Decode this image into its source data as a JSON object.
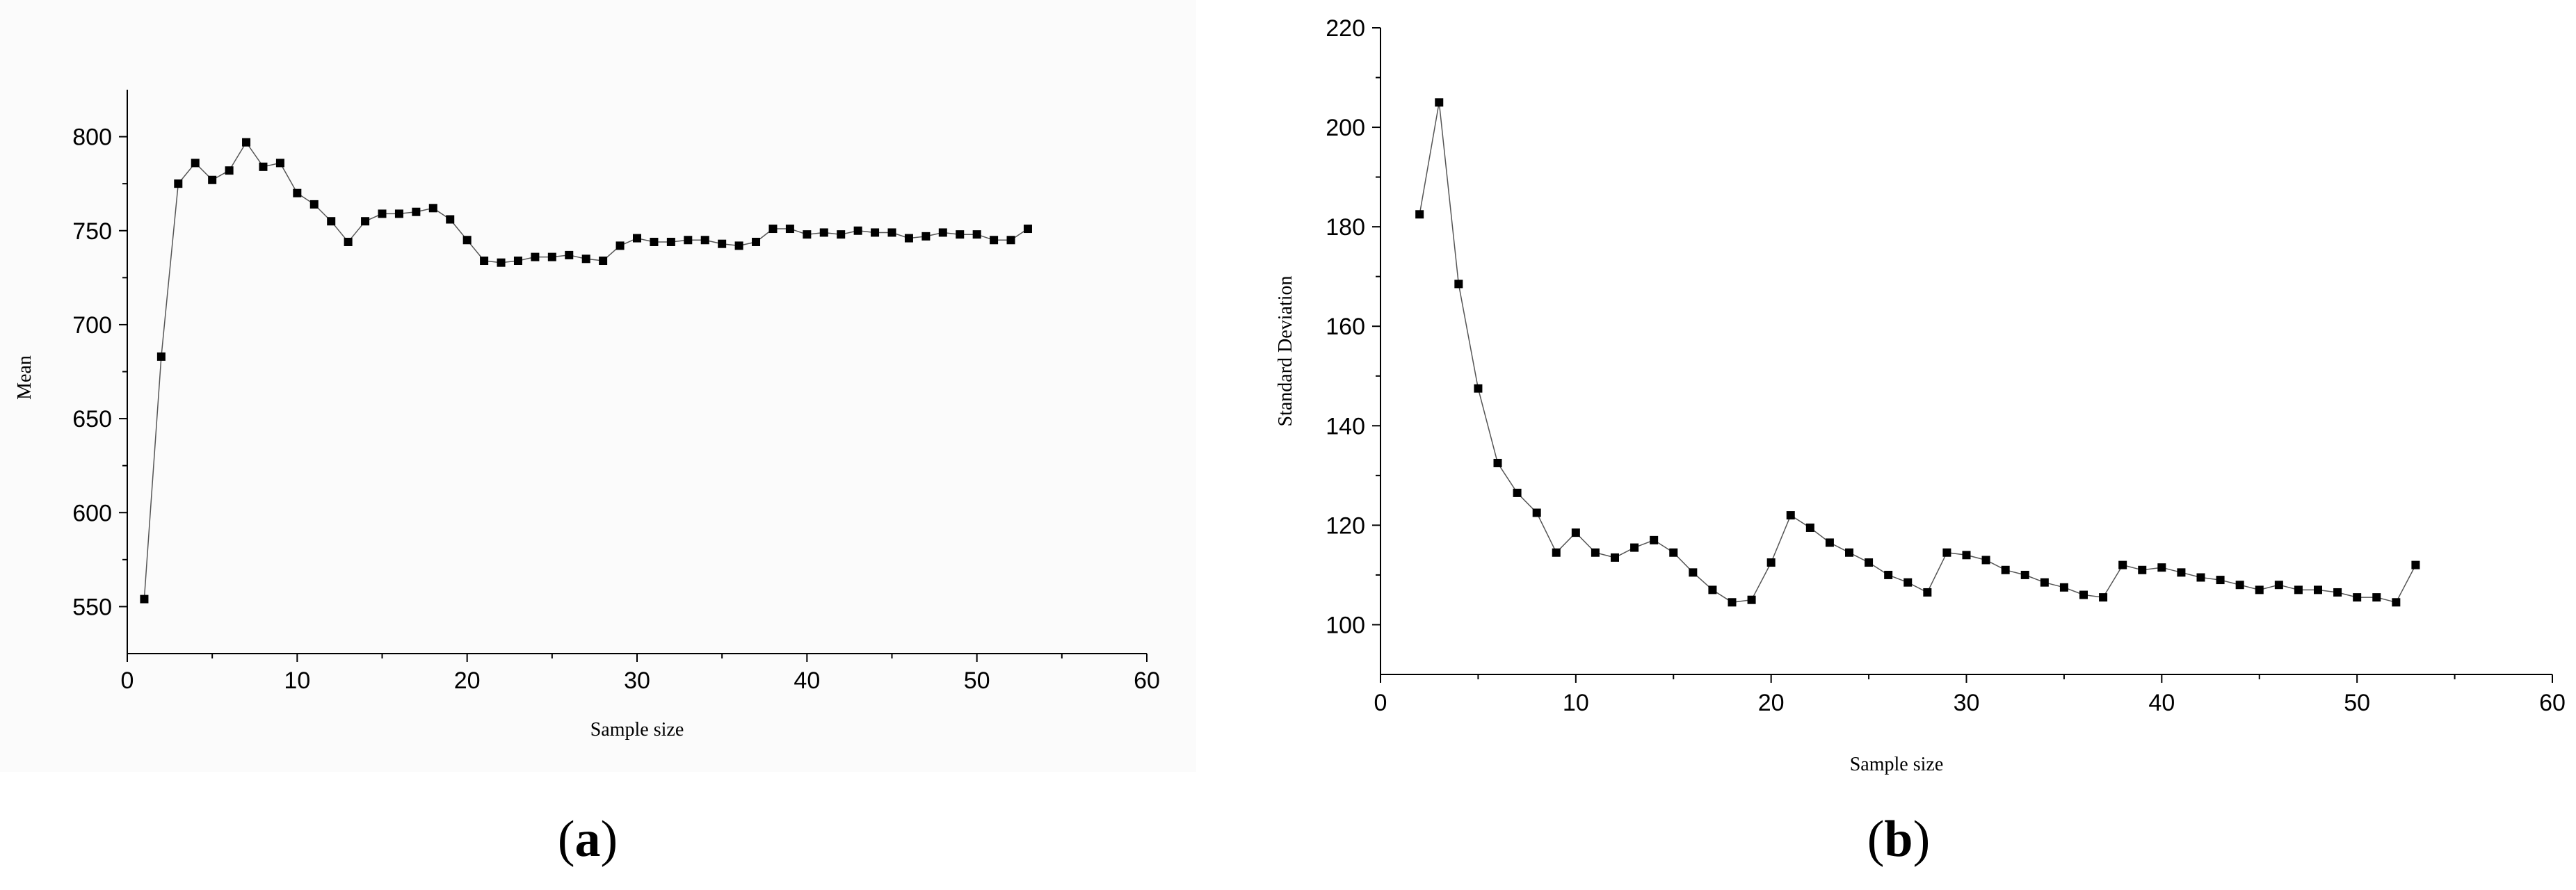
{
  "chart_data": [
    {
      "type": "line",
      "panel_label": "a",
      "title": "",
      "xlabel": "Sample size",
      "ylabel": "Mean",
      "xlim": [
        0,
        60
      ],
      "ylim": [
        525,
        825
      ],
      "xticks": [
        0,
        10,
        20,
        30,
        40,
        50,
        60
      ],
      "yticks": [
        550,
        600,
        650,
        700,
        750,
        800
      ],
      "grid": false,
      "marker": "square",
      "series": [
        {
          "x": [
            1,
            2,
            3,
            4,
            5,
            6,
            7,
            8,
            9,
            10,
            11,
            12,
            13,
            14,
            15,
            16,
            17,
            18,
            19,
            20,
            21,
            22,
            23,
            24,
            25,
            26,
            27,
            28,
            29,
            30,
            31,
            32,
            33,
            34,
            35,
            36,
            37,
            38,
            39,
            40,
            41,
            42,
            43,
            44,
            45,
            46,
            47,
            48,
            49,
            50,
            51,
            52,
            53
          ],
          "values": [
            554,
            683,
            775,
            786,
            777,
            782,
            797,
            784,
            786,
            770,
            764,
            755,
            744,
            755,
            759,
            759,
            760,
            762,
            756,
            745,
            734,
            733,
            734,
            736,
            736,
            737,
            735,
            734,
            742,
            746,
            744,
            744,
            745,
            745,
            743,
            742,
            744,
            751,
            751,
            748,
            749,
            748,
            750,
            749,
            749,
            746,
            747,
            749,
            748,
            748,
            745,
            745,
            751
          ]
        }
      ]
    },
    {
      "type": "line",
      "panel_label": "b",
      "title": "",
      "xlabel": "Sample size",
      "ylabel": "Standard Deviation",
      "xlim": [
        0,
        60
      ],
      "ylim": [
        90,
        220
      ],
      "xticks": [
        0,
        10,
        20,
        30,
        40,
        50,
        60
      ],
      "yticks": [
        100,
        120,
        140,
        160,
        180,
        200,
        220
      ],
      "grid": false,
      "marker": "square",
      "series": [
        {
          "x": [
            2,
            3,
            4,
            5,
            6,
            7,
            8,
            9,
            10,
            11,
            12,
            13,
            14,
            15,
            16,
            17,
            18,
            19,
            20,
            21,
            22,
            23,
            24,
            25,
            26,
            27,
            28,
            29,
            30,
            31,
            32,
            33,
            34,
            35,
            36,
            37,
            38,
            39,
            40,
            41,
            42,
            43,
            44,
            45,
            46,
            47,
            48,
            49,
            50,
            51,
            52,
            53
          ],
          "values": [
            182.5,
            205,
            168.5,
            147.5,
            132.5,
            126.5,
            122.5,
            114.5,
            118.5,
            114.5,
            113.5,
            115.5,
            117,
            114.5,
            110.5,
            107,
            104.5,
            105,
            112.5,
            122,
            119.5,
            116.5,
            114.5,
            112.5,
            110,
            108.5,
            106.5,
            114.5,
            114,
            113,
            111,
            110,
            108.5,
            107.5,
            106,
            105.5,
            112,
            111,
            111.5,
            110.5,
            109.5,
            109,
            108,
            107,
            108,
            107,
            107,
            106.5,
            105.5,
            105.5,
            104.5,
            112
          ]
        }
      ]
    }
  ],
  "captions": {
    "a": {
      "open": "(",
      "letter": "a",
      "close": ")"
    },
    "b": {
      "open": "(",
      "letter": "b",
      "close": ")"
    }
  }
}
